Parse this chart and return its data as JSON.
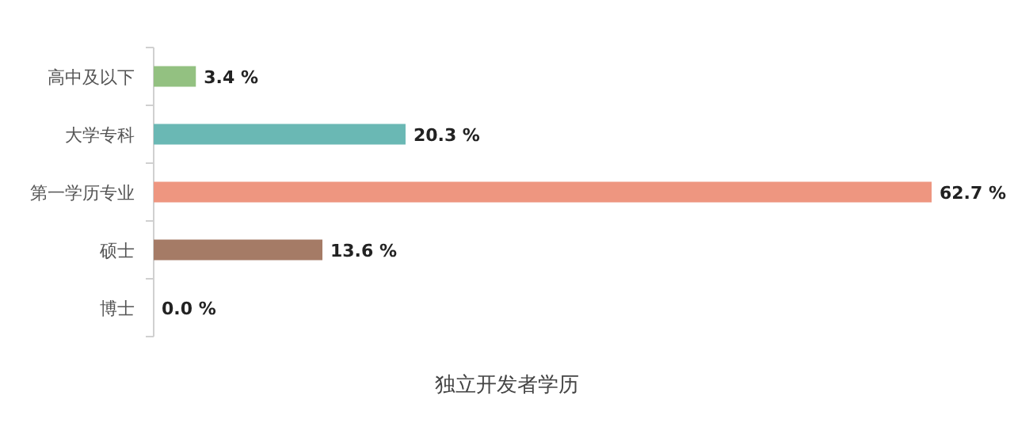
{
  "chart_data": {
    "type": "bar",
    "orientation": "horizontal",
    "xlabel": "独立开发者学历",
    "categories": [
      "高中及以下",
      "大学专科",
      "第一学历专业",
      "硕士",
      "博士"
    ],
    "values": [
      3.4,
      20.3,
      62.7,
      13.6,
      0.0
    ],
    "colors": [
      "#93c181",
      "#6ab8b4",
      "#ee9680",
      "#a57b66",
      "#c9c9c9"
    ],
    "value_labels": [
      "3.4 %",
      "20.3 %",
      "62.7 %",
      "13.6 %",
      "0.0 %"
    ]
  }
}
